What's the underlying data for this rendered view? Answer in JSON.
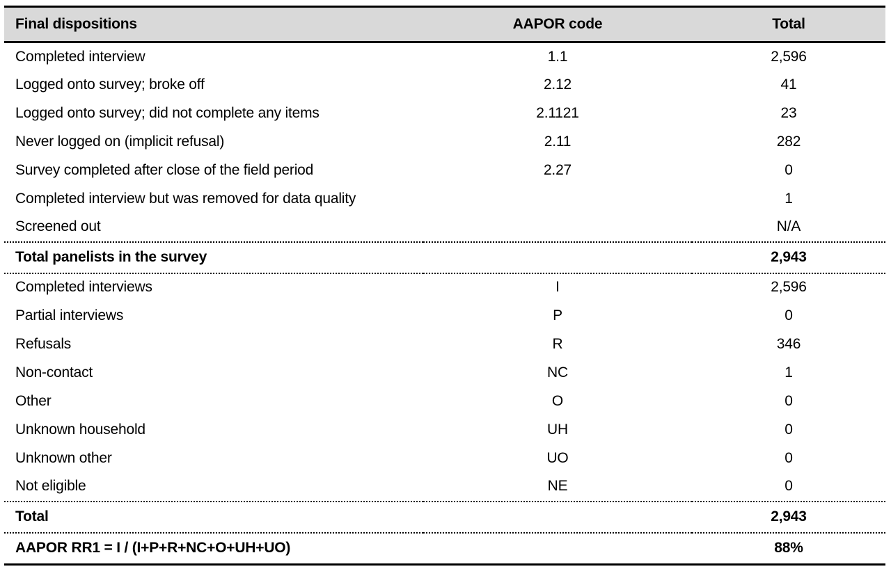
{
  "table": {
    "headers": {
      "dispositions": "Final dispositions",
      "code": "AAPOR code",
      "total": "Total"
    },
    "section1": [
      {
        "label": "Completed interview",
        "code": "1.1",
        "total": "2,596"
      },
      {
        "label": "Logged onto survey; broke off",
        "code": "2.12",
        "total": "41"
      },
      {
        "label": "Logged onto survey; did not complete any items",
        "code": "2.1121",
        "total": "23"
      },
      {
        "label": "Never logged on (implicit refusal)",
        "code": "2.11",
        "total": "282"
      },
      {
        "label": "Survey completed after close of the field period",
        "code": "2.27",
        "total": "0"
      },
      {
        "label": "Completed interview but was removed for data quality",
        "code": "",
        "total": "1"
      },
      {
        "label": "Screened out",
        "code": "",
        "total": "N/A"
      }
    ],
    "total1": {
      "label": "Total panelists in the survey",
      "code": "",
      "total": "2,943"
    },
    "section2": [
      {
        "label": "Completed interviews",
        "code": "I",
        "total": "2,596"
      },
      {
        "label": "Partial interviews",
        "code": "P",
        "total": "0"
      },
      {
        "label": "Refusals",
        "code": "R",
        "total": "346"
      },
      {
        "label": "Non-contact",
        "code": "NC",
        "total": "1"
      },
      {
        "label": "Other",
        "code": "O",
        "total": "0"
      },
      {
        "label": "Unknown household",
        "code": "UH",
        "total": "0"
      },
      {
        "label": "Unknown other",
        "code": "UO",
        "total": "0"
      },
      {
        "label": "Not eligible",
        "code": "NE",
        "total": "0"
      }
    ],
    "total2": {
      "label": "Total",
      "code": "",
      "total": "2,943"
    },
    "rr1": {
      "label": "AAPOR RR1 = I / (I+P+R+NC+O+UH+UO)",
      "code": "",
      "total": "88%"
    }
  },
  "colors": {
    "header_bg": "#d9d9d9",
    "border": "#000000",
    "text": "#000000"
  }
}
